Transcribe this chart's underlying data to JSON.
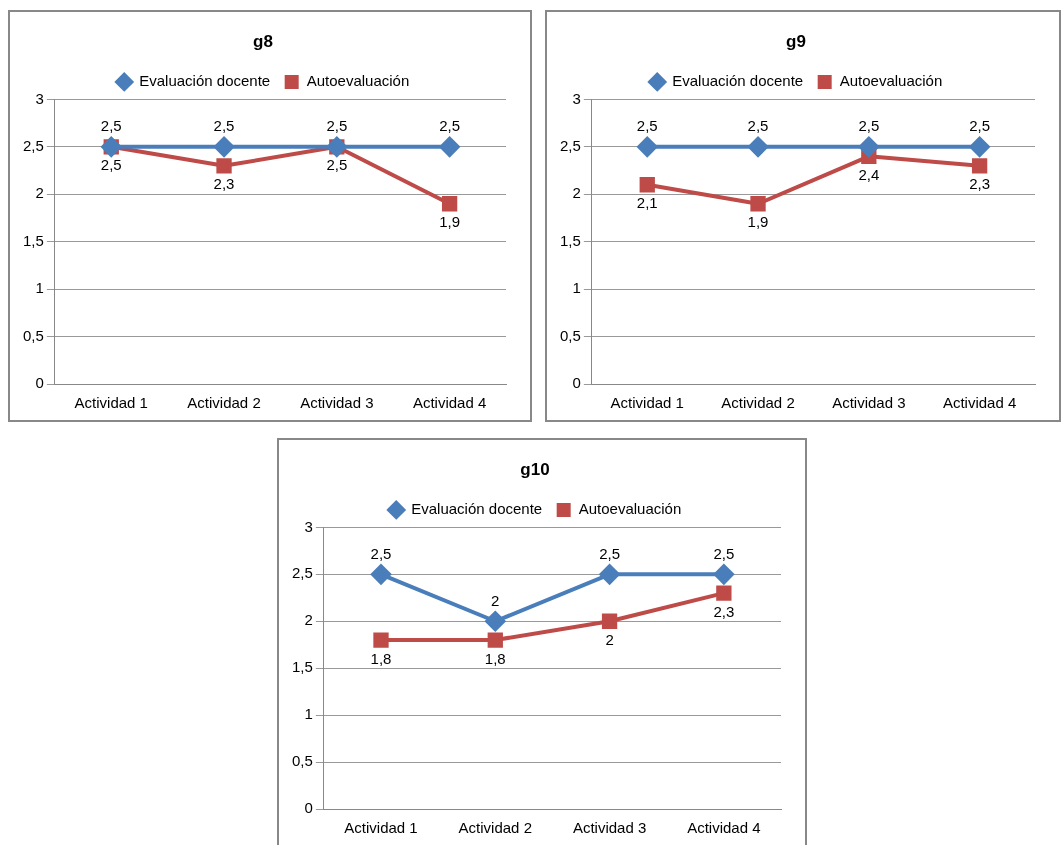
{
  "chart_data": [
    {
      "type": "line",
      "title": "g8",
      "categories": [
        "Actividad 1",
        "Actividad 2",
        "Actividad 3",
        "Actividad 4"
      ],
      "legend": "top",
      "grid": "y",
      "ylim": [
        0,
        3
      ],
      "yticks": [
        0,
        {
          "value": 0.5,
          "label": "0,5"
        },
        1,
        {
          "value": 1.5,
          "label": "1,5"
        },
        2,
        {
          "value": 2.5,
          "label": "2,5"
        },
        3
      ],
      "series": [
        {
          "name": "Evaluación docente",
          "color": "#4a7ebb",
          "marker": "diamond",
          "values": [
            2.5,
            2.5,
            2.5,
            2.5
          ],
          "value_labels": [
            "2,5",
            "2,5",
            "2,5",
            "2,5"
          ]
        },
        {
          "name": "Autoevaluación",
          "color": "#be4b48",
          "marker": "square",
          "values": [
            2.5,
            2.3,
            2.5,
            1.9
          ],
          "value_labels": [
            "2,5",
            "2,3",
            "2,5",
            "1,9"
          ]
        }
      ]
    },
    {
      "type": "line",
      "title": "g9",
      "categories": [
        "Actividad 1",
        "Actividad 2",
        "Actividad 3",
        "Actividad 4"
      ],
      "legend": "top",
      "grid": "y",
      "ylim": [
        0,
        3
      ],
      "yticks": [
        0,
        {
          "value": 0.5,
          "label": "0,5"
        },
        1,
        {
          "value": 1.5,
          "label": "1,5"
        },
        2,
        {
          "value": 2.5,
          "label": "2,5"
        },
        3
      ],
      "series": [
        {
          "name": "Evaluación docente",
          "color": "#4a7ebb",
          "marker": "diamond",
          "values": [
            2.5,
            2.5,
            2.5,
            2.5
          ],
          "value_labels": [
            "2,5",
            "2,5",
            "2,5",
            "2,5"
          ]
        },
        {
          "name": "Autoevaluación",
          "color": "#be4b48",
          "marker": "square",
          "values": [
            2.1,
            1.9,
            2.4,
            2.3
          ],
          "value_labels": [
            "2,1",
            "1,9",
            "2,4",
            "2,3"
          ]
        }
      ]
    },
    {
      "type": "line",
      "title": "g10",
      "categories": [
        "Actividad 1",
        "Actividad 2",
        "Actividad 3",
        "Actividad 4"
      ],
      "legend": "top",
      "grid": "y",
      "ylim": [
        0,
        3
      ],
      "yticks": [
        0,
        {
          "value": 0.5,
          "label": "0,5"
        },
        1,
        {
          "value": 1.5,
          "label": "1,5"
        },
        2,
        {
          "value": 2.5,
          "label": "2,5"
        },
        3
      ],
      "series": [
        {
          "name": "Evaluación docente",
          "color": "#4a7ebb",
          "marker": "diamond",
          "values": [
            2.5,
            2,
            2.5,
            2.5
          ],
          "value_labels": [
            "2,5",
            "2",
            "2,5",
            "2,5"
          ]
        },
        {
          "name": "Autoevaluación",
          "color": "#be4b48",
          "marker": "square",
          "values": [
            1.8,
            1.8,
            2,
            2.3
          ],
          "value_labels": [
            "1,8",
            "1,8",
            "2",
            "2,3"
          ]
        }
      ]
    }
  ]
}
